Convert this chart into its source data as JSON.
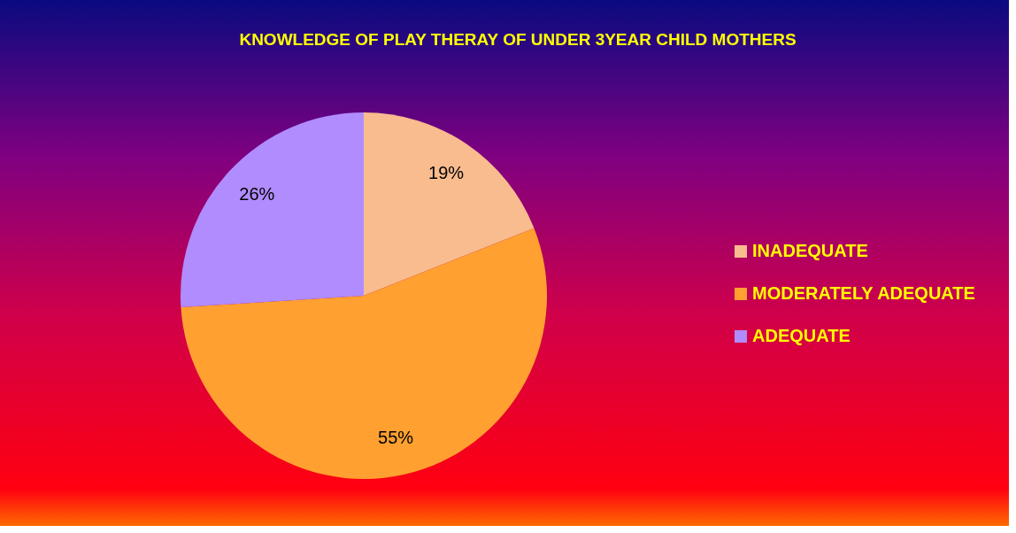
{
  "chart_data": {
    "type": "pie",
    "title": "KNOWLEDGE OF PLAY THERAY OF UNDER 3YEAR CHILD MOTHERS",
    "categories": [
      "INADEQUATE",
      "MODERATELY ADEQUATE",
      "ADEQUATE"
    ],
    "values": [
      19,
      55,
      26
    ],
    "colors": [
      "#f9bc8f",
      "#ffa030",
      "#b08cff"
    ],
    "value_labels": [
      "19%",
      "55%",
      "26%"
    ],
    "legend": "right"
  }
}
